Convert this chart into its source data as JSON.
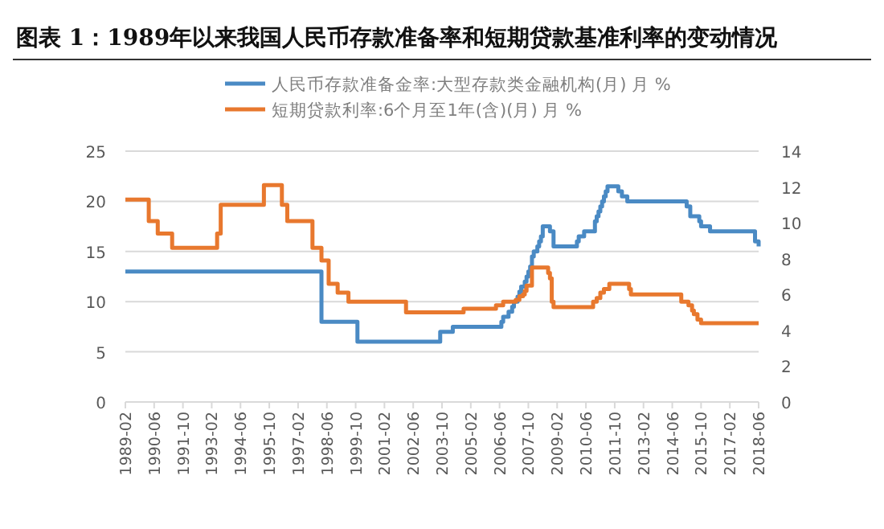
{
  "chart_data": {
    "type": "step",
    "title": "图表 1：1989年以来我国人民币存款准备率和短期贷款基准利率的变动情况",
    "xlim": [
      "1989-02",
      "2018-06"
    ],
    "xticks": [
      "1989-02",
      "1990-06",
      "1991-10",
      "1993-02",
      "1994-06",
      "1995-10",
      "1997-02",
      "1998-06",
      "1999-10",
      "2001-02",
      "2002-06",
      "2003-10",
      "2005-02",
      "2006-06",
      "2007-10",
      "2009-02",
      "2010-06",
      "2011-10",
      "2013-02",
      "2014-06",
      "2015-10",
      "2017-02",
      "2018-06"
    ],
    "ylim": [
      0,
      25
    ],
    "yticks": [
      0,
      5,
      10,
      15,
      20,
      25
    ],
    "y2lim": [
      0,
      14
    ],
    "y2ticks": [
      0,
      2,
      4,
      6,
      8,
      10,
      12,
      14
    ],
    "grid": "y",
    "legend": "top",
    "line_style": "solid",
    "marker": "none",
    "series": [
      {
        "name": "人民币存款准备金率:大型存款类金融机构(月) 月 %",
        "color": "#4a8ac4",
        "x": [
          "1989-02",
          "1998-03",
          "1999-11",
          "2003-09",
          "2004-04",
          "2006-07",
          "2006-08",
          "2006-11",
          "2007-01",
          "2007-02",
          "2007-04",
          "2007-05",
          "2007-06",
          "2007-08",
          "2007-09",
          "2007-10",
          "2007-11",
          "2007-12",
          "2008-01",
          "2008-03",
          "2008-04",
          "2008-05",
          "2008-06",
          "2008-10",
          "2008-12",
          "2010-01",
          "2010-02",
          "2010-05",
          "2010-11",
          "2010-12",
          "2011-01",
          "2011-02",
          "2011-03",
          "2011-04",
          "2011-05",
          "2011-06",
          "2011-12",
          "2012-02",
          "2012-05",
          "2015-02",
          "2015-04",
          "2015-09",
          "2015-10",
          "2016-03",
          "2018-04",
          "2018-06"
        ],
        "values": [
          13,
          8,
          6,
          7,
          7.5,
          8,
          8.5,
          9,
          9.5,
          10,
          10.5,
          11,
          11.5,
          12,
          12.5,
          13,
          13.5,
          14.5,
          15,
          15.5,
          16,
          16.5,
          17.5,
          17,
          15.5,
          16,
          16.5,
          17,
          18,
          18.5,
          19,
          19.5,
          20,
          20.5,
          21,
          21.5,
          21,
          20.5,
          20,
          19.5,
          18.5,
          18,
          17.5,
          17,
          16,
          15.5
        ]
      },
      {
        "name": "短期贷款利率:6个月至1年(含)(月) 月 %",
        "color": "#e8782e",
        "axis": "y2",
        "x": [
          "1989-02",
          "1990-03",
          "1990-08",
          "1991-04",
          "1993-05",
          "1993-07",
          "1995-07",
          "1996-05",
          "1996-08",
          "1997-10",
          "1998-03",
          "1998-07",
          "1998-12",
          "1999-06",
          "2002-02",
          "2004-10",
          "2006-04",
          "2006-08",
          "2007-03",
          "2007-05",
          "2007-07",
          "2007-08",
          "2007-09",
          "2007-12",
          "2008-09",
          "2008-10",
          "2008-11",
          "2008-12",
          "2010-10",
          "2010-12",
          "2011-02",
          "2011-04",
          "2011-07",
          "2012-06",
          "2012-07",
          "2014-11",
          "2015-03",
          "2015-05",
          "2015-06",
          "2015-08",
          "2015-10",
          "2018-06"
        ],
        "values": [
          11.3,
          10.1,
          9.4,
          8.6,
          9.4,
          11.0,
          12.1,
          11.0,
          10.1,
          8.6,
          7.9,
          6.6,
          6.1,
          5.6,
          5.0,
          5.2,
          5.4,
          5.6,
          5.7,
          5.9,
          6.0,
          6.2,
          6.5,
          7.5,
          7.2,
          6.9,
          5.6,
          5.3,
          5.6,
          5.8,
          6.1,
          6.3,
          6.6,
          6.3,
          6.0,
          5.6,
          5.4,
          5.1,
          4.9,
          4.6,
          4.4,
          4.4
        ]
      }
    ]
  }
}
